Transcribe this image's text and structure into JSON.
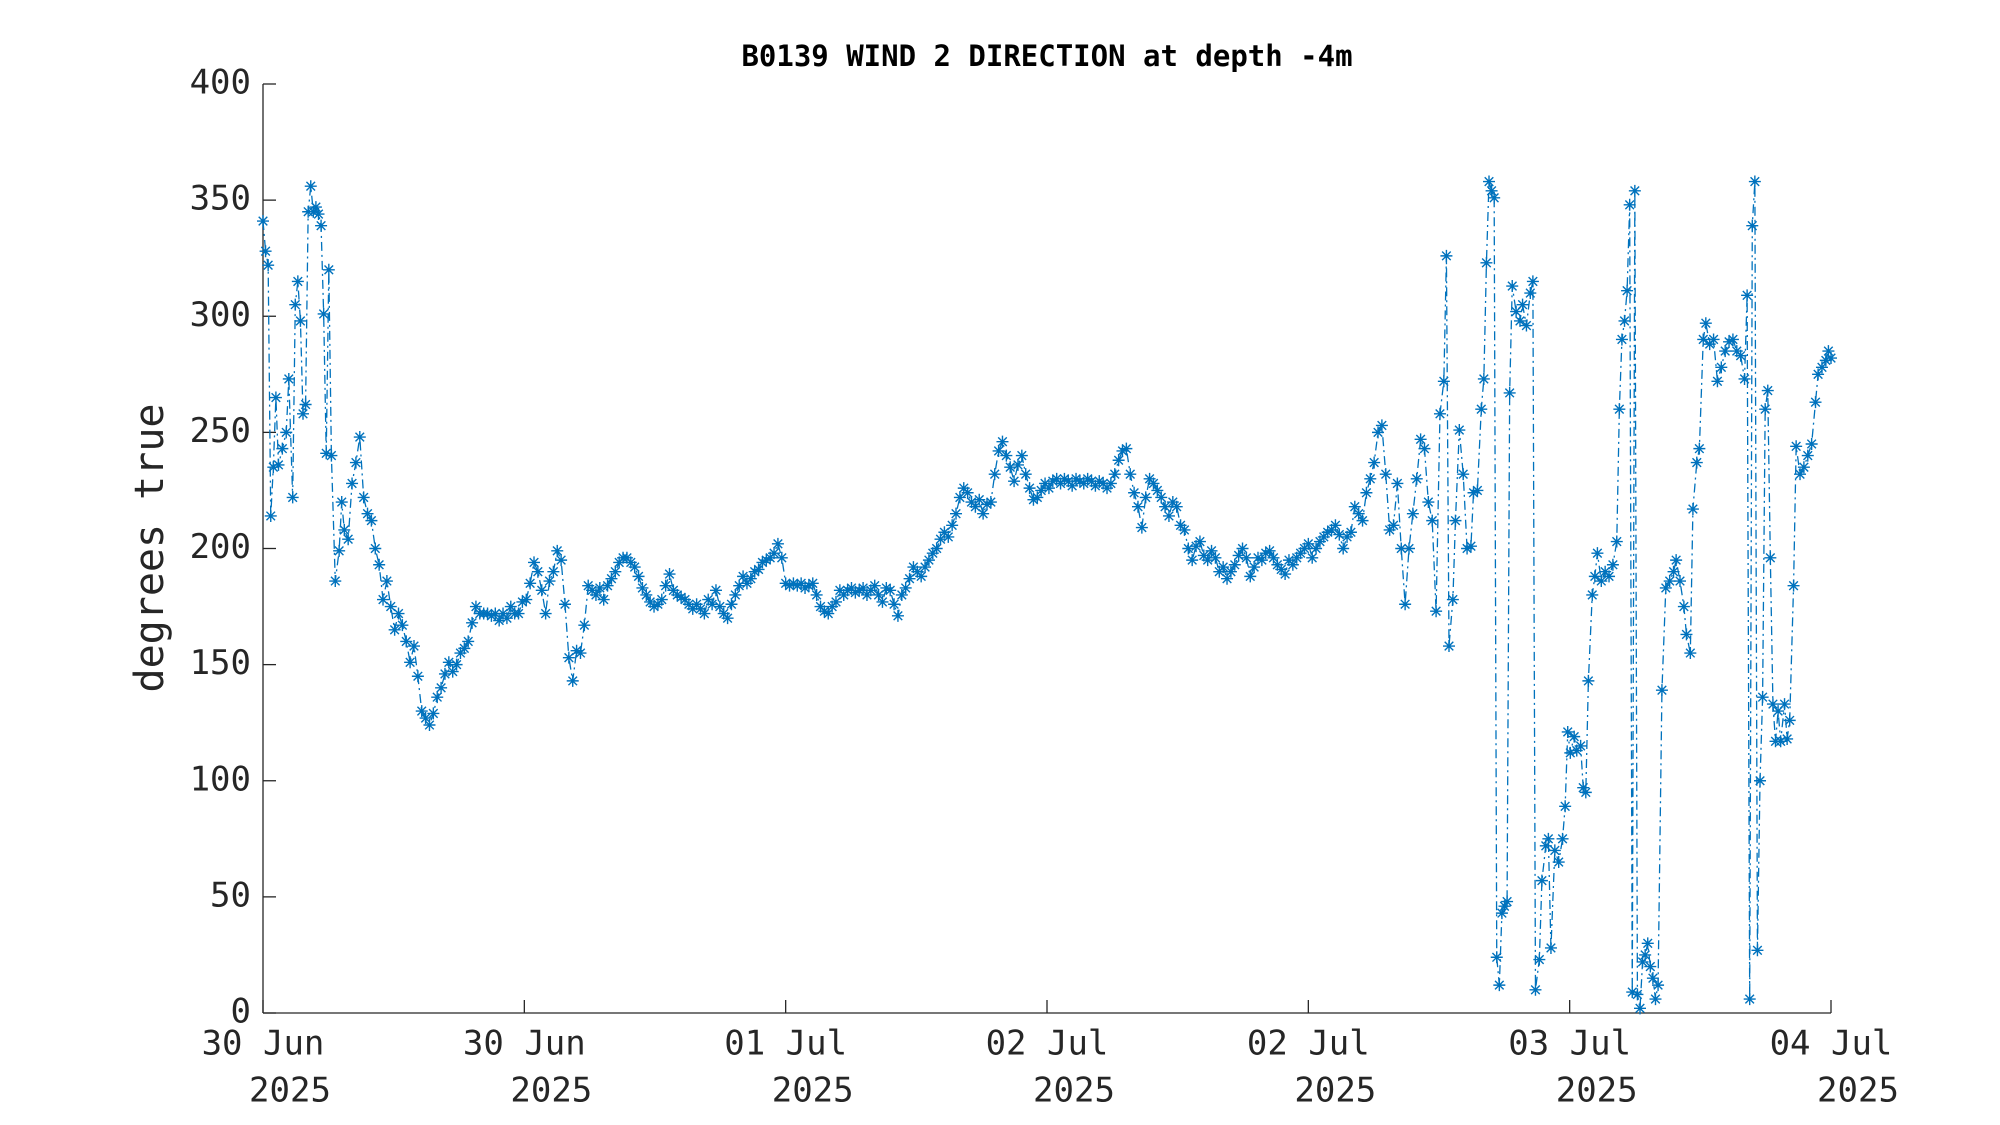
{
  "chart_data": {
    "type": "line",
    "title": "B0139 WIND 2 DIRECTION at depth -4m",
    "ylabel": "degrees true",
    "xlim": [
      0,
      1215
    ],
    "ylim": [
      0,
      400
    ],
    "yticks": [
      0,
      50,
      100,
      150,
      200,
      250,
      300,
      350,
      400
    ],
    "xticks": [
      {
        "value": 0,
        "label": [
          "30 Jun",
          "2025"
        ]
      },
      {
        "value": 202.5,
        "label": [
          "30 Jun",
          "2025"
        ]
      },
      {
        "value": 405,
        "label": [
          "01 Jul",
          "2025"
        ]
      },
      {
        "value": 607.5,
        "label": [
          "02 Jul",
          "2025"
        ]
      },
      {
        "value": 810,
        "label": [
          "02 Jul",
          "2025"
        ]
      },
      {
        "value": 1012.5,
        "label": [
          "03 Jul",
          "2025"
        ]
      },
      {
        "value": 1215,
        "label": [
          "04 Jul",
          "2025"
        ]
      }
    ],
    "grid": false,
    "x": [
      0,
      2,
      4,
      6,
      8,
      10,
      12,
      15,
      18,
      20,
      23,
      25,
      27,
      29,
      31,
      33,
      35,
      37,
      39,
      41,
      43,
      45,
      47,
      49,
      51,
      53,
      56,
      59,
      61,
      63,
      66,
      69,
      72,
      75,
      78,
      81,
      84,
      87,
      90,
      93,
      96,
      99,
      102,
      105,
      108,
      111,
      114,
      117,
      120,
      123,
      126,
      129,
      132,
      135,
      138,
      141,
      144,
      147,
      150,
      153,
      156,
      159,
      162,
      165,
      168,
      171,
      174,
      177,
      180,
      183,
      186,
      189,
      192,
      195,
      198,
      201,
      204,
      207,
      210,
      213,
      216,
      219,
      222,
      225,
      228,
      231,
      234,
      237,
      240,
      243,
      246,
      249,
      252,
      255,
      258,
      261,
      264,
      267,
      270,
      273,
      276,
      279,
      282,
      285,
      288,
      291,
      294,
      297,
      300,
      303,
      306,
      309,
      312,
      315,
      318,
      321,
      324,
      327,
      330,
      333,
      336,
      339,
      342,
      345,
      348,
      351,
      354,
      357,
      360,
      363,
      366,
      369,
      372,
      375,
      378,
      381,
      384,
      387,
      390,
      393,
      396,
      399,
      402,
      405,
      408,
      411,
      414,
      417,
      420,
      423,
      426,
      429,
      432,
      435,
      438,
      441,
      444,
      447,
      450,
      453,
      456,
      459,
      462,
      465,
      468,
      471,
      474,
      477,
      480,
      483,
      486,
      489,
      492,
      495,
      498,
      501,
      504,
      507,
      510,
      513,
      516,
      519,
      522,
      525,
      528,
      531,
      534,
      537,
      540,
      543,
      546,
      549,
      552,
      555,
      558,
      561,
      564,
      567,
      570,
      573,
      576,
      579,
      582,
      585,
      588,
      591,
      594,
      597,
      600,
      603,
      606,
      609,
      612,
      615,
      618,
      621,
      624,
      627,
      630,
      633,
      636,
      639,
      642,
      645,
      648,
      651,
      654,
      657,
      660,
      663,
      666,
      669,
      672,
      675,
      678,
      681,
      684,
      687,
      690,
      693,
      696,
      699,
      702,
      705,
      708,
      711,
      714,
      717,
      720,
      723,
      726,
      729,
      732,
      735,
      738,
      741,
      744,
      747,
      750,
      753,
      756,
      759,
      762,
      765,
      768,
      771,
      774,
      777,
      780,
      783,
      786,
      789,
      792,
      795,
      798,
      801,
      804,
      807,
      810,
      813,
      816,
      819,
      822,
      825,
      828,
      831,
      834,
      837,
      840,
      843,
      846,
      849,
      852,
      855,
      858,
      861,
      864,
      867,
      870,
      873,
      876,
      879,
      882,
      885,
      888,
      891,
      894,
      897,
      900,
      903,
      906,
      909,
      912,
      915,
      917,
      919,
      922,
      924,
      927,
      930,
      933,
      936,
      938,
      941,
      944,
      946,
      948,
      950,
      952,
      954,
      956,
      958,
      960,
      962,
      964,
      966,
      968,
      971,
      974,
      976,
      979,
      982,
      984,
      986,
      989,
      991,
      994,
      996,
      998,
      1001,
      1004,
      1007,
      1009,
      1011,
      1013,
      1016,
      1018,
      1021,
      1023,
      1025,
      1027,
      1030,
      1032,
      1034,
      1037,
      1040,
      1043,
      1046,
      1049,
      1051,
      1053,
      1055,
      1057,
      1059,
      1061,
      1063,
      1065,
      1067,
      1069,
      1071,
      1073,
      1075,
      1077,
      1079,
      1081,
      1084,
      1087,
      1090,
      1093,
      1095,
      1098,
      1101,
      1103,
      1106,
      1108,
      1111,
      1113,
      1116,
      1118,
      1121,
      1124,
      1127,
      1130,
      1133,
      1136,
      1139,
      1142,
      1145,
      1148,
      1150,
      1152,
      1154,
      1156,
      1158,
      1160,
      1162,
      1164,
      1166,
      1168,
      1170,
      1172,
      1174,
      1176,
      1179,
      1181,
      1183,
      1186,
      1188,
      1191,
      1194,
      1197,
      1200,
      1203,
      1205,
      1208,
      1211,
      1213,
      1215
    ],
    "series": [
      {
        "color": "#0072bd",
        "values": [
          341,
          328,
          322,
          214,
          235,
          265,
          236,
          243,
          250,
          273,
          222,
          305,
          315,
          298,
          258,
          262,
          345,
          356,
          345,
          347,
          344,
          339,
          301,
          241,
          320,
          240,
          186,
          199,
          220,
          208,
          204,
          228,
          237,
          248,
          222,
          215,
          212,
          200,
          193,
          178,
          186,
          175,
          165,
          172,
          167,
          160,
          151,
          158,
          145,
          130,
          127,
          124,
          129,
          136,
          140,
          146,
          151,
          147,
          150,
          155,
          157,
          160,
          168,
          175,
          172,
          172,
          172,
          171,
          172,
          169,
          172,
          170,
          175,
          172,
          172,
          177,
          178,
          185,
          194,
          190,
          182,
          172,
          186,
          190,
          199,
          195,
          176,
          153,
          143,
          156,
          155,
          167,
          184,
          182,
          180,
          183,
          178,
          184,
          187,
          190,
          194,
          196,
          196,
          194,
          192,
          188,
          183,
          180,
          177,
          175,
          176,
          178,
          184,
          189,
          182,
          180,
          179,
          178,
          176,
          174,
          176,
          174,
          172,
          178,
          176,
          182,
          175,
          172,
          170,
          176,
          180,
          184,
          188,
          185,
          187,
          190,
          191,
          194,
          195,
          196,
          198,
          202,
          196,
          185,
          184,
          185,
          184,
          185,
          183,
          184,
          185,
          180,
          175,
          173,
          172,
          175,
          177,
          182,
          180,
          182,
          183,
          181,
          182,
          183,
          180,
          182,
          184,
          180,
          177,
          183,
          182,
          176,
          171,
          180,
          183,
          187,
          192,
          190,
          188,
          192,
          195,
          198,
          200,
          204,
          207,
          205,
          210,
          215,
          222,
          226,
          224,
          220,
          218,
          221,
          215,
          219,
          220,
          232,
          242,
          246,
          240,
          235,
          229,
          236,
          240,
          232,
          226,
          221,
          222,
          225,
          228,
          226,
          229,
          230,
          228,
          230,
          229,
          227,
          230,
          229,
          228,
          230,
          229,
          227,
          229,
          228,
          226,
          228,
          232,
          238,
          242,
          243,
          232,
          224,
          218,
          209,
          222,
          230,
          228,
          225,
          222,
          218,
          214,
          220,
          218,
          210,
          208,
          200,
          195,
          201,
          203,
          197,
          195,
          199,
          196,
          190,
          192,
          187,
          190,
          193,
          197,
          200,
          196,
          188,
          192,
          196,
          195,
          198,
          199,
          196,
          193,
          191,
          189,
          195,
          193,
          196,
          198,
          200,
          202,
          196,
          200,
          203,
          205,
          207,
          208,
          210,
          206,
          200,
          205,
          207,
          218,
          215,
          212,
          224,
          230,
          237,
          250,
          253,
          232,
          208,
          210,
          228,
          200,
          176,
          200,
          215,
          230,
          247,
          243,
          220,
          212,
          173,
          258,
          272,
          326,
          158,
          178,
          212,
          251,
          232,
          200,
          201,
          224,
          225,
          260,
          273,
          323,
          358,
          354,
          351,
          24,
          12,
          43,
          46,
          48,
          267,
          313,
          302,
          298,
          305,
          296,
          310,
          315,
          10,
          23,
          57,
          72,
          75,
          28,
          70,
          65,
          75,
          89,
          121,
          112,
          119,
          113,
          115,
          97,
          95,
          143,
          180,
          188,
          198,
          186,
          190,
          188,
          193,
          203,
          260,
          290,
          298,
          311,
          348,
          9,
          354,
          8,
          2,
          22,
          25,
          30,
          20,
          15,
          6,
          12,
          139,
          183,
          186,
          190,
          195,
          186,
          175,
          163,
          155,
          217,
          237,
          243,
          290,
          297,
          288,
          290,
          272,
          278,
          285,
          289,
          290,
          285,
          283,
          273,
          309,
          6,
          339,
          358,
          27,
          100,
          136,
          260,
          268,
          196,
          133,
          117,
          130,
          117,
          133,
          118,
          126,
          184,
          244,
          232,
          235,
          240,
          245,
          263,
          275,
          278,
          281,
          285,
          282
        ]
      }
    ]
  }
}
